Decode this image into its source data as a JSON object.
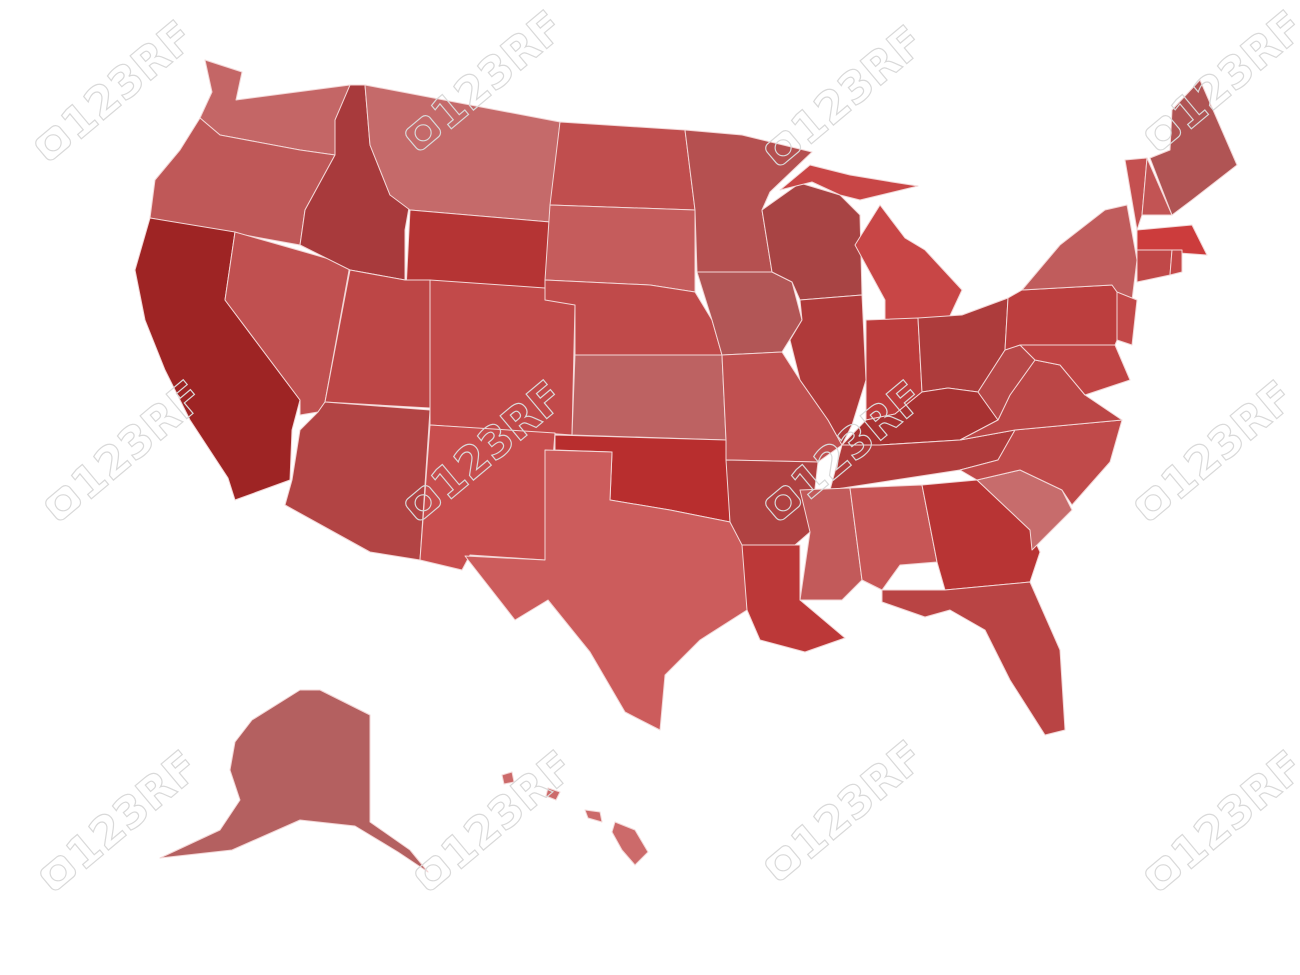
{
  "map": {
    "background": "#ffffff",
    "border_color": "#f3d6d6",
    "state_colors": {
      "WA": "#c46666",
      "OR": "#bf5858",
      "CA": "#9e2424",
      "NV": "#c05050",
      "ID": "#a83a3c",
      "MT": "#c56a6a",
      "WY": "#b53434",
      "UT": "#bd4646",
      "CO": "#c24a4a",
      "AZ": "#b24444",
      "NM": "#c84e4e",
      "ND": "#c04e4e",
      "SD": "#c55c5c",
      "NE": "#c04a4a",
      "KS": "#bd6262",
      "OK": "#b82e2e",
      "TX": "#cc5c5c",
      "MN": "#b55050",
      "IA": "#b25656",
      "MO": "#c05050",
      "AR": "#b04242",
      "LA": "#bc3838",
      "WI": "#a84444",
      "IL": "#b03a3a",
      "MI": "#c84646",
      "IN": "#bc3c3c",
      "OH": "#ad3c3c",
      "KY": "#a83232",
      "TN": "#b03c3c",
      "MS": "#c25a5a",
      "AL": "#c75656",
      "GA": "#b83434",
      "FL": "#b94444",
      "SC": "#c76c6c",
      "NC": "#c04a4a",
      "VA": "#bb4646",
      "WV": "#b84848",
      "PA": "#bc3e3e",
      "NY": "#c05c5c",
      "MD": "#c04444",
      "NJ": "#c24848",
      "VT": "#c45050",
      "NH": "#c25454",
      "ME": "#b05454",
      "MA": "#cc3c3c",
      "CT": "#c04848",
      "RI": "#c44848",
      "AK": "#b46060",
      "HI": "#cc6a6a"
    }
  },
  "watermark": {
    "text": "123RF",
    "color": "#d9d9d9"
  }
}
